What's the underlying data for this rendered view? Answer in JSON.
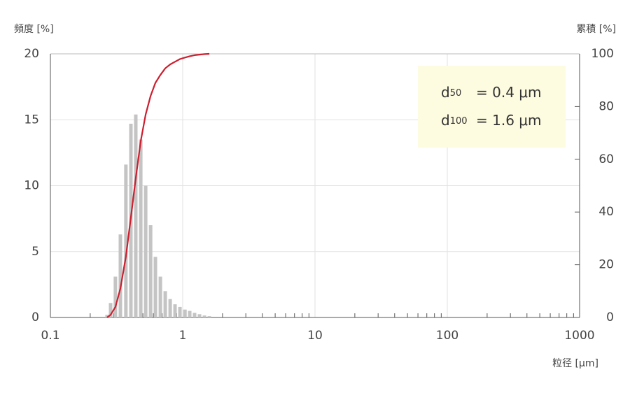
{
  "chart_data": {
    "type": "bar",
    "y_label": "頻度 [%]",
    "y2_label": "累積 [%]",
    "x_label": "粒径 [μm]",
    "x": [
      0.268,
      0.285,
      0.31,
      0.338,
      0.372,
      0.406,
      0.442,
      0.482,
      0.525,
      0.572,
      0.622,
      0.678,
      0.738,
      0.804,
      0.875,
      0.953,
      1.04,
      1.13,
      1.23,
      1.34,
      1.46,
      1.59
    ],
    "series": [
      {
        "type": "bar",
        "color": "#c4c4c4",
        "values": [
          0.2,
          1.1,
          3.1,
          6.3,
          11.6,
          14.7,
          15.4,
          13.5,
          10,
          7,
          4.6,
          3.1,
          2,
          1.4,
          1,
          0.8,
          0.6,
          0.5,
          0.35,
          0.25,
          0.15,
          0.1
        ]
      },
      {
        "type": "line",
        "axis": "y2",
        "color": "#cc1f2f",
        "values": [
          0,
          1,
          4,
          11,
          23,
          38,
          53,
          67,
          77,
          84,
          89,
          92,
          94.5,
          96,
          97,
          98,
          98.6,
          99.1,
          99.5,
          99.7,
          99.9,
          100
        ]
      }
    ],
    "xlog": true,
    "xlim": [
      0.1,
      1000
    ],
    "xticks": [
      0.1,
      1,
      10,
      100,
      1000
    ],
    "ylim": [
      0,
      20
    ],
    "yticks": [
      0,
      5,
      10,
      15,
      20
    ],
    "y2lim": [
      0,
      100
    ],
    "y2ticks": [
      0,
      20,
      40,
      60,
      80,
      100
    ],
    "grid": true,
    "annotations": [
      {
        "symbol": "d",
        "subscript": "50",
        "text": "= 0.4 μm"
      },
      {
        "symbol": "d",
        "subscript": "100",
        "text": "= 1.6 μm"
      }
    ],
    "annotation_color": "#fdfbe0"
  }
}
